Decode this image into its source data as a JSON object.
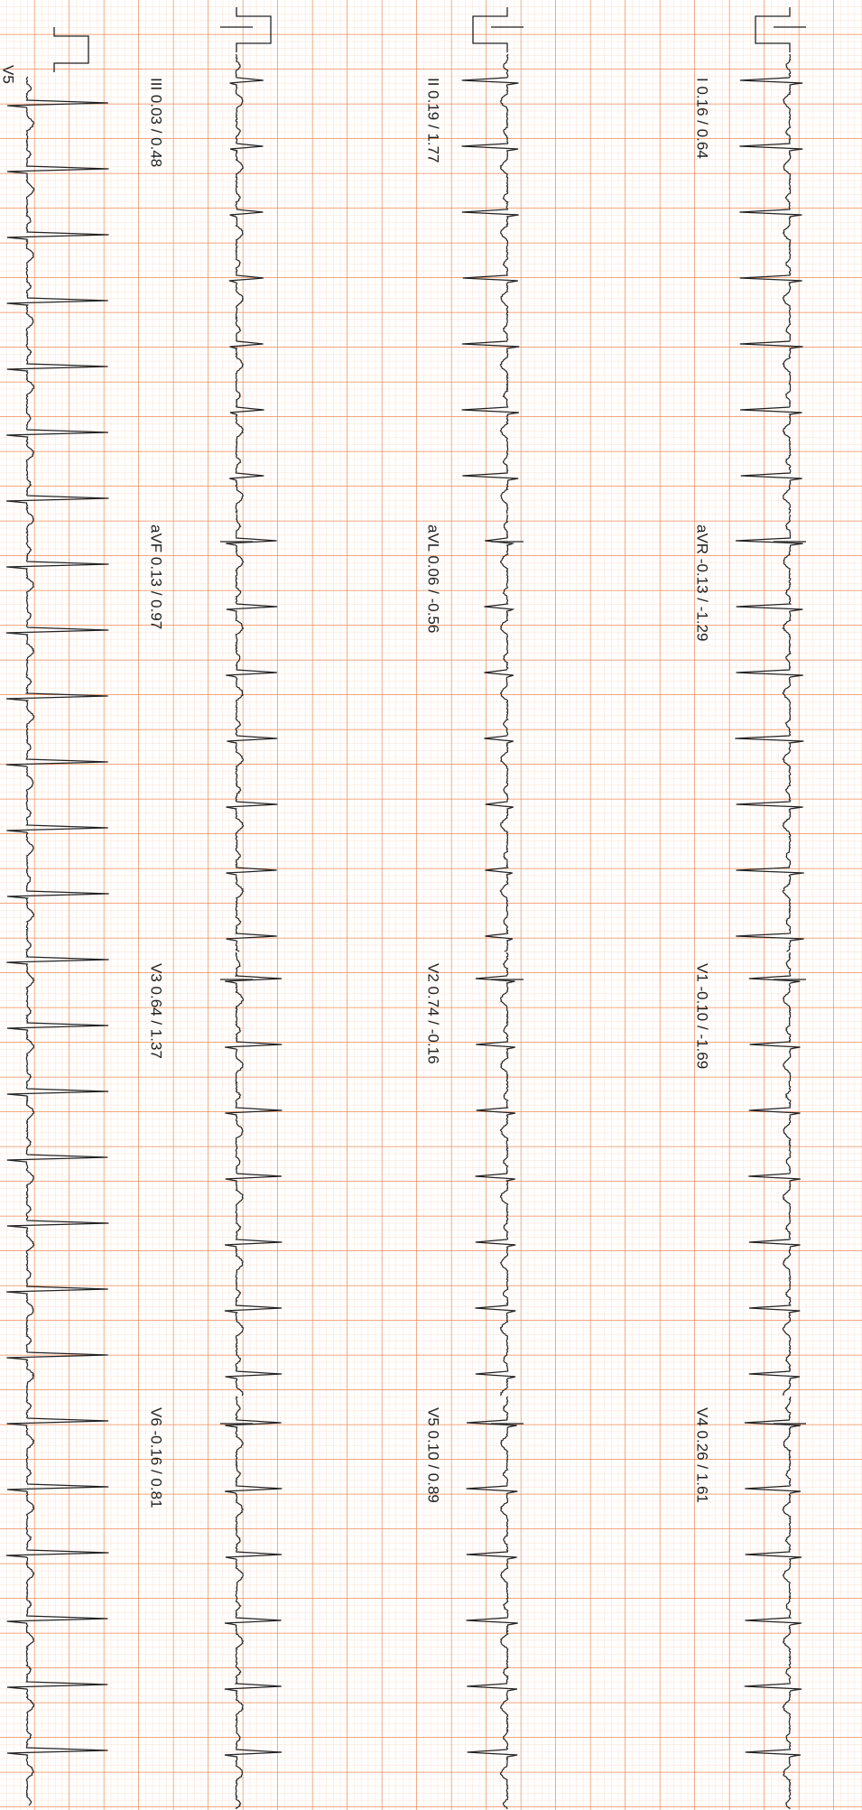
{
  "rows": [
    [
      "I 0.16 / 0.64",
      "aVR -0.13 / -1.29",
      "V1 -0.10 / -1.69",
      "V4 0.26 / 1.61"
    ],
    [
      "II 0.19 / 1.77",
      "aVL 0.06 / -0.56",
      "V2 0.74 / -0.16",
      "V5 0.10 / 0.89"
    ],
    [
      "III 0.03 / 0.48",
      "aVF 0.13 / 0.97",
      "V3 0.64 / 1.37",
      "V6 -0.16 / 0.81"
    ]
  ],
  "rhythm_label": "V5"
}
